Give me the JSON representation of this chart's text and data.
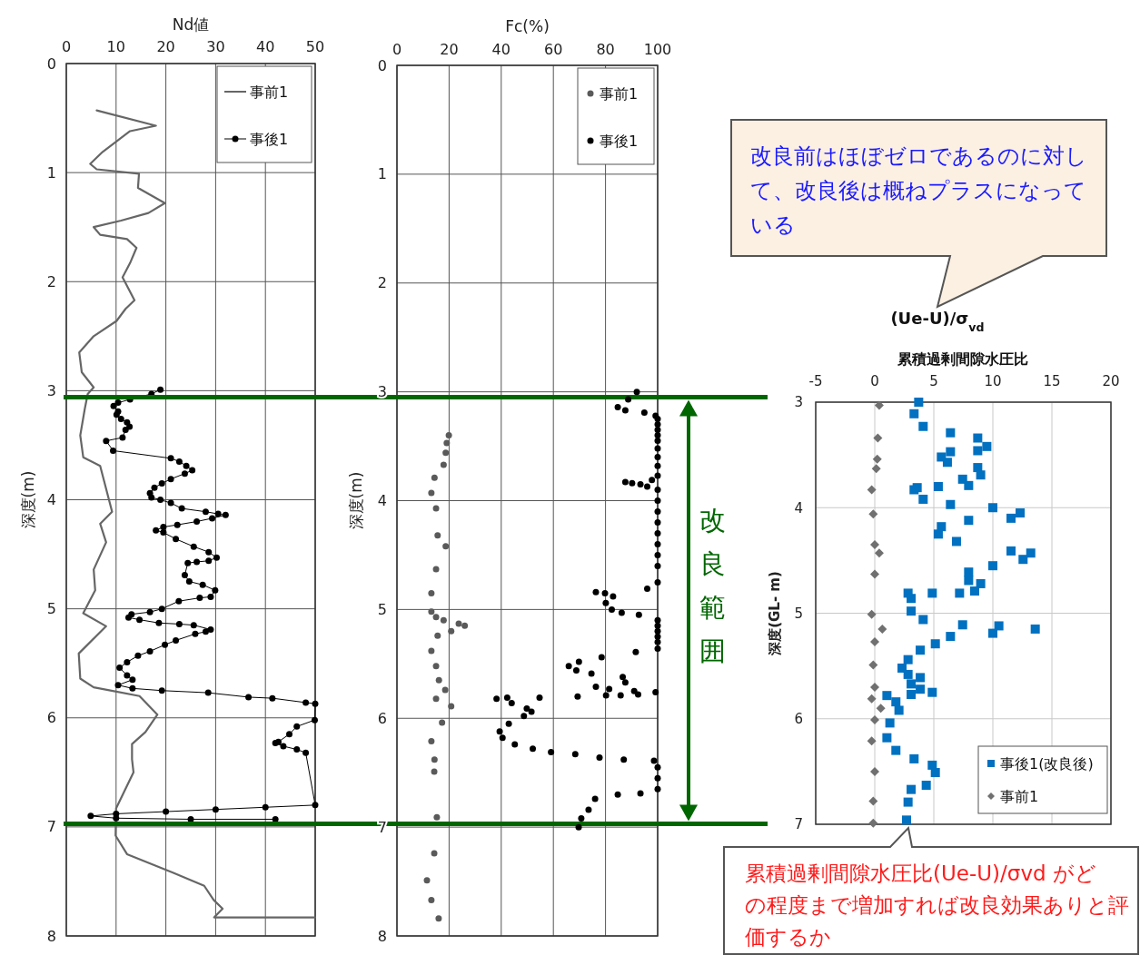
{
  "chart_data": [
    {
      "type": "line",
      "xlabel": "Nd値",
      "ylabel": "深度(m)",
      "xlim": [
        0,
        50
      ],
      "xticks": [
        0,
        10,
        20,
        30,
        40,
        50
      ],
      "ylim": [
        8,
        0
      ],
      "yticks": [
        0,
        1,
        2,
        3,
        4,
        5,
        6,
        7,
        8
      ],
      "grid": true,
      "legend": "top right",
      "marker": "circle",
      "series": [
        {
          "name": "事前1",
          "color": "#666666",
          "marker": "none",
          "x": [
            6.1,
            18.0,
            12.8,
            7.3,
            4.8,
            6.1,
            14.6,
            14.4,
            19.8,
            16.5,
            11.0,
            5.5,
            6.8,
            12.2,
            14.1,
            12.8,
            11.3,
            13.7,
            11.9,
            10.1,
            5.5,
            2.6,
            3.1,
            5.5,
            4.3,
            3.7,
            2.8,
            3.4,
            6.8,
            9.2,
            6.8,
            8.0,
            5.5,
            5.8,
            3.4,
            8.0,
            2.5,
            2.8,
            5.5,
            14.7,
            18.3,
            15.9,
            13.2,
            13.2,
            13.5,
            10.0,
            9.9,
            12.2,
            21.4,
            27.7,
            29.6,
            31.4,
            29.7,
            50
          ],
          "values": [
            0.43,
            0.57,
            0.62,
            0.81,
            0.92,
            0.97,
            1.01,
            1.14,
            1.28,
            1.37,
            1.44,
            1.5,
            1.57,
            1.61,
            1.69,
            1.83,
            1.96,
            2.17,
            2.25,
            2.36,
            2.5,
            2.65,
            2.83,
            2.97,
            3.03,
            3.17,
            3.41,
            3.61,
            3.69,
            4.11,
            4.22,
            4.39,
            4.64,
            4.83,
            5.04,
            5.16,
            5.41,
            5.64,
            5.72,
            5.8,
            5.97,
            6.13,
            6.24,
            6.38,
            6.5,
            6.83,
            7.08,
            7.25,
            7.42,
            7.54,
            7.67,
            7.75,
            7.83,
            7.83
          ]
        },
        {
          "name": "事後1",
          "color": "#000000",
          "x": [
            18.9,
            17.1,
            12.8,
            10.4,
            9.5,
            10.4,
            10.1,
            11.0,
            12.2,
            12.7,
            11.9,
            11.3,
            8.0,
            9.4,
            21.0,
            22.7,
            24.1,
            25.3,
            23.8,
            21.0,
            19.2,
            17.7,
            16.8,
            17.1,
            18.9,
            21.0,
            23.2,
            28.0,
            30.5,
            32.0,
            29.3,
            26.2,
            22.3,
            19.5,
            18.0,
            19.5,
            22.0,
            25.6,
            28.6,
            30.2,
            28.6,
            26.2,
            24.4,
            23.8,
            24.7,
            27.4,
            29.9,
            29.0,
            26.8,
            22.6,
            19.2,
            16.8,
            13.1,
            12.5,
            14.7,
            18.6,
            22.7,
            25.6,
            29.0,
            28.0,
            25.9,
            22.0,
            19.8,
            16.8,
            14.4,
            12.2,
            10.7,
            12.2,
            13.3,
            10.4,
            13.3,
            19.2,
            28.5,
            36.6,
            41.4,
            48.1,
            50.0,
            49.9,
            46.3,
            44.8,
            42.6,
            42.0,
            43.6,
            46.3,
            48.1,
            50.0,
            40.0,
            30.0,
            20.0,
            10.0,
            4.9,
            10.0,
            25.0,
            42.0
          ],
          "values": [
            2.99,
            3.03,
            3.08,
            3.11,
            3.14,
            3.19,
            3.22,
            3.26,
            3.29,
            3.33,
            3.36,
            3.43,
            3.46,
            3.55,
            3.62,
            3.65,
            3.69,
            3.73,
            3.76,
            3.81,
            3.85,
            3.89,
            3.94,
            3.98,
            4.0,
            4.03,
            4.08,
            4.11,
            4.13,
            4.14,
            4.17,
            4.2,
            4.23,
            4.25,
            4.28,
            4.3,
            4.36,
            4.43,
            4.48,
            4.53,
            4.56,
            4.57,
            4.58,
            4.69,
            4.75,
            4.78,
            4.83,
            4.89,
            4.9,
            4.93,
            5.0,
            5.03,
            5.05,
            5.08,
            5.1,
            5.13,
            5.14,
            5.15,
            5.19,
            5.21,
            5.23,
            5.29,
            5.33,
            5.39,
            5.43,
            5.49,
            5.54,
            5.61,
            5.65,
            5.7,
            5.73,
            5.75,
            5.77,
            5.81,
            5.82,
            5.86,
            5.87,
            6.02,
            6.08,
            6.15,
            6.22,
            6.23,
            6.26,
            6.29,
            6.32,
            6.8,
            6.82,
            6.84,
            6.86,
            6.88,
            6.9,
            6.92,
            6.93,
            6.93
          ]
        }
      ]
    },
    {
      "type": "scatter",
      "xlabel": "Fc(%)",
      "ylabel": "深度(m)",
      "xlim": [
        0,
        100
      ],
      "xticks": [
        0,
        20,
        40,
        60,
        80,
        100
      ],
      "ylim": [
        8,
        0
      ],
      "yticks": [
        0,
        1,
        2,
        3,
        4,
        5,
        6,
        7,
        8
      ],
      "grid": true,
      "legend": "top right",
      "marker": "circle",
      "ref_lines": [
        {
          "axis": "y",
          "value": 3.05,
          "color": "#006600"
        },
        {
          "axis": "y",
          "value": 6.97,
          "color": "#006600"
        }
      ],
      "annotations": [
        "改良範囲"
      ],
      "series": [
        {
          "name": "事前1",
          "color": "#5a5a5a",
          "x": [
            19.9,
            19.1,
            18.7,
            17.9,
            14.4,
            13.2,
            15.0,
            15.6,
            18.7,
            15.0,
            13.2,
            13.2,
            15.0,
            17.9,
            23.7,
            26.0,
            20.8,
            15.6,
            13.2,
            15.0,
            16.1,
            18.5,
            15.0,
            20.8,
            17.3,
            13.2,
            14.4,
            14.3,
            15.3,
            14.3,
            11.5,
            13.2,
            16.0
          ],
          "values": [
            3.4,
            3.47,
            3.56,
            3.67,
            3.79,
            3.93,
            4.07,
            4.32,
            4.42,
            4.63,
            4.85,
            5.02,
            5.07,
            5.1,
            5.13,
            5.15,
            5.2,
            5.24,
            5.38,
            5.52,
            5.65,
            5.74,
            5.82,
            5.89,
            6.04,
            6.21,
            6.38,
            6.49,
            6.91,
            7.24,
            7.49,
            7.67,
            7.84
          ]
        },
        {
          "name": "事後1",
          "color": "#000000",
          "x": [
            92.0,
            88.7,
            84.7,
            87.6,
            94.9,
            99.2,
            100,
            100,
            100,
            100,
            100,
            100,
            100,
            100,
            100,
            87.6,
            90.2,
            93.4,
            96.0,
            97.8,
            100,
            100,
            100,
            100,
            100,
            100,
            100,
            100,
            100,
            96.0,
            76.3,
            79.8,
            82.9,
            80.1,
            82.4,
            86.2,
            92.8,
            100,
            100,
            100,
            100,
            100,
            100,
            91.6,
            78.5,
            65.9,
            69.8,
            68.8,
            74.6,
            86.6,
            87.6,
            76.3,
            81.4,
            91.0,
            92.5,
            99.2,
            69.3,
            80.2,
            85.8,
            54.7,
            42.3,
            38.2,
            44.0,
            49.8,
            51.6,
            48.7,
            42.9,
            39.4,
            40.5,
            45.2,
            52.1,
            59.1,
            68.4,
            77.7,
            87.0,
            98.6,
            100,
            100,
            100,
            93.4,
            84.7,
            76.0,
            73.5,
            70.7,
            69.7
          ],
          "values": [
            3.0,
            3.07,
            3.14,
            3.17,
            3.19,
            3.22,
            3.25,
            3.3,
            3.35,
            3.4,
            3.45,
            3.52,
            3.6,
            3.68,
            3.77,
            3.83,
            3.84,
            3.85,
            3.87,
            3.81,
            3.9,
            4.0,
            4.1,
            4.2,
            4.3,
            4.4,
            4.5,
            4.6,
            4.75,
            4.81,
            4.84,
            4.85,
            4.88,
            4.94,
            5.0,
            5.03,
            5.05,
            5.1,
            5.15,
            5.2,
            5.25,
            5.3,
            5.36,
            5.39,
            5.44,
            5.52,
            5.48,
            5.56,
            5.59,
            5.62,
            5.67,
            5.71,
            5.73,
            5.75,
            5.78,
            5.76,
            5.8,
            5.79,
            5.79,
            5.81,
            5.81,
            5.82,
            5.86,
            5.91,
            5.94,
            5.98,
            6.05,
            6.12,
            6.18,
            6.24,
            6.28,
            6.31,
            6.33,
            6.36,
            6.38,
            6.39,
            6.45,
            6.55,
            6.65,
            6.69,
            6.7,
            6.74,
            6.84,
            6.92,
            7.0
          ]
        }
      ]
    },
    {
      "type": "scatter",
      "title": "(Ue-U)/σ$_{vd}$",
      "subtitle": "累積過剰間隙水圧比",
      "ylabel": "深度(GL- m)",
      "xlim": [
        -5,
        20
      ],
      "xticks": [
        -5,
        0,
        5,
        10,
        15,
        20
      ],
      "ylim": [
        7,
        3
      ],
      "yticks": [
        3,
        4,
        5,
        6,
        7
      ],
      "grid": true,
      "legend": "bottom right",
      "annotations": [
        "改良前はほぼゼロであるのに対して、改良後は概ねプラスになっている",
        "累積過剰間隙水圧比(Ue-U)/σvd がどの程度まで増加すれば改良効果ありと評価するか"
      ],
      "series": [
        {
          "name": "事後1(改良後)",
          "color": "#0070c0",
          "marker": "square",
          "x": [
            3.72,
            3.33,
            4.1,
            6.41,
            8.72,
            9.49,
            8.72,
            6.41,
            5.64,
            6.15,
            8.72,
            8.97,
            7.44,
            7.95,
            5.38,
            3.59,
            3.33,
            4.1,
            6.41,
            10.0,
            12.31,
            11.54,
            7.95,
            5.64,
            5.38,
            6.92,
            11.54,
            13.21,
            12.56,
            10.0,
            7.95,
            7.95,
            8.97,
            8.46,
            7.18,
            4.87,
            2.82,
            3.08,
            3.08,
            4.1,
            7.44,
            10.51,
            13.59,
            10.0,
            6.41,
            5.13,
            3.85,
            2.82,
            2.31,
            2.82,
            3.85,
            3.08,
            3.85,
            4.87,
            3.08,
            1.03,
            1.79,
            2.05,
            1.28,
            1.03,
            1.79,
            3.33,
            4.87,
            5.13,
            4.36,
            3.08,
            2.82,
            2.69
          ],
          "values": [
            3.0,
            3.11,
            3.23,
            3.29,
            3.34,
            3.42,
            3.46,
            3.47,
            3.52,
            3.57,
            3.62,
            3.69,
            3.73,
            3.79,
            3.8,
            3.81,
            3.83,
            3.92,
            3.97,
            4.0,
            4.05,
            4.1,
            4.12,
            4.18,
            4.25,
            4.32,
            4.41,
            4.43,
            4.49,
            4.55,
            4.61,
            4.69,
            4.72,
            4.79,
            4.81,
            4.81,
            4.81,
            4.86,
            4.98,
            5.06,
            5.11,
            5.12,
            5.15,
            5.19,
            5.22,
            5.29,
            5.35,
            5.44,
            5.52,
            5.58,
            5.61,
            5.67,
            5.72,
            5.75,
            5.77,
            5.78,
            5.84,
            5.92,
            6.04,
            6.18,
            6.3,
            6.38,
            6.44,
            6.51,
            6.63,
            6.67,
            6.79,
            6.96
          ]
        },
        {
          "name": "事前1",
          "color": "#707070",
          "marker": "diamond",
          "x": [
            0.38,
            0.26,
            0.21,
            0.13,
            -0.26,
            -0.13,
            0,
            0.38,
            0,
            -0.26,
            0.64,
            0,
            -0.13,
            0,
            -0.26,
            0.51,
            0,
            -0.26,
            0,
            -0.13,
            -0.13
          ],
          "values": [
            3.03,
            3.34,
            3.54,
            3.63,
            3.83,
            4.06,
            4.35,
            4.43,
            4.63,
            5.01,
            5.15,
            5.27,
            5.49,
            5.7,
            5.81,
            5.9,
            6.01,
            6.21,
            6.5,
            6.78,
            6.99
          ]
        }
      ]
    }
  ]
}
